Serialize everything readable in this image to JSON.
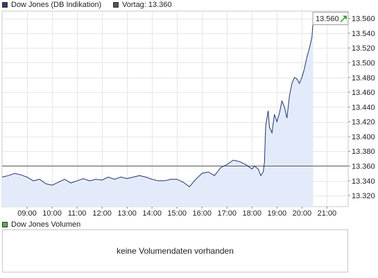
{
  "legend": {
    "main_label": "Dow Jones (DB Indikation)",
    "main_color": "#2f3b73",
    "prev_label": "Vortag: 13.360",
    "prev_color": "#4b5563"
  },
  "volume": {
    "legend_label": "Dow Jones Volumen",
    "legend_color": "#55b24a",
    "empty_text": "keine Volumendaten vorhanden"
  },
  "chart_data": {
    "type": "area",
    "line_color": "#22336b",
    "fill_color": "#e3ebfa",
    "reference_line": {
      "value": 13360,
      "color": "#555555"
    },
    "last_value": {
      "value": 13560,
      "label": "13.560",
      "direction": "up",
      "arrow_color": "#2ea22e"
    },
    "xlim": [
      8.0,
      21.85
    ],
    "ylim": [
      13305,
      13570
    ],
    "x_ticks": [
      {
        "value": 9,
        "label": "09:00"
      },
      {
        "value": 10,
        "label": "10:00"
      },
      {
        "value": 11,
        "label": "11:00"
      },
      {
        "value": 12,
        "label": "12:00"
      },
      {
        "value": 13,
        "label": "13:00"
      },
      {
        "value": 14,
        "label": "14:00"
      },
      {
        "value": 15,
        "label": "15:00"
      },
      {
        "value": 16,
        "label": "16:00"
      },
      {
        "value": 17,
        "label": "17:00"
      },
      {
        "value": 18,
        "label": "18:00"
      },
      {
        "value": 19,
        "label": "19:00"
      },
      {
        "value": 20,
        "label": "20:00"
      },
      {
        "value": 21,
        "label": "21:00"
      }
    ],
    "y_ticks": [
      {
        "value": 13320,
        "label": "13.320"
      },
      {
        "value": 13340,
        "label": "13.340"
      },
      {
        "value": 13360,
        "label": "13.360"
      },
      {
        "value": 13380,
        "label": "13.380"
      },
      {
        "value": 13400,
        "label": "13.400"
      },
      {
        "value": 13420,
        "label": "13.420"
      },
      {
        "value": 13440,
        "label": "13.440"
      },
      {
        "value": 13460,
        "label": "13.460"
      },
      {
        "value": 13480,
        "label": "13.480"
      },
      {
        "value": 13500,
        "label": "13.500"
      },
      {
        "value": 13520,
        "label": "13.520"
      },
      {
        "value": 13540,
        "label": "13.540"
      },
      {
        "value": 13560,
        "label": "13.560"
      }
    ],
    "grid": true,
    "series": [
      {
        "x": [
          8.0,
          8.25,
          8.5,
          8.75,
          9.0,
          9.25,
          9.5,
          9.75,
          10.0,
          10.25,
          10.5,
          10.75,
          11.0,
          11.25,
          11.5,
          11.75,
          12.0,
          12.25,
          12.5,
          12.75,
          13.0,
          13.25,
          13.5,
          13.75,
          14.0,
          14.25,
          14.5,
          14.75,
          15.0,
          15.25,
          15.5,
          15.75,
          16.0,
          16.25,
          16.5,
          16.75,
          17.0,
          17.25,
          17.5,
          17.75,
          18.0,
          18.1,
          18.25,
          18.35,
          18.45,
          18.5,
          18.55,
          18.6,
          18.65,
          18.7,
          18.8,
          18.9,
          19.0,
          19.1,
          19.2,
          19.3,
          19.4,
          19.5,
          19.6,
          19.7,
          19.8,
          19.9,
          20.0,
          20.1,
          20.2,
          20.3,
          20.4,
          20.45
        ],
        "y": [
          13345,
          13347,
          13350,
          13348,
          13345,
          13340,
          13342,
          13336,
          13334,
          13338,
          13342,
          13337,
          13340,
          13343,
          13340,
          13342,
          13341,
          13345,
          13342,
          13345,
          13343,
          13345,
          13347,
          13345,
          13342,
          13340,
          13340,
          13342,
          13342,
          13338,
          13332,
          13342,
          13350,
          13352,
          13347,
          13358,
          13362,
          13368,
          13366,
          13362,
          13356,
          13360,
          13356,
          13347,
          13352,
          13365,
          13415,
          13425,
          13435,
          13413,
          13405,
          13430,
          13420,
          13432,
          13448,
          13440,
          13425,
          13455,
          13472,
          13480,
          13478,
          13472,
          13480,
          13492,
          13508,
          13520,
          13535,
          13560
        ]
      }
    ]
  }
}
